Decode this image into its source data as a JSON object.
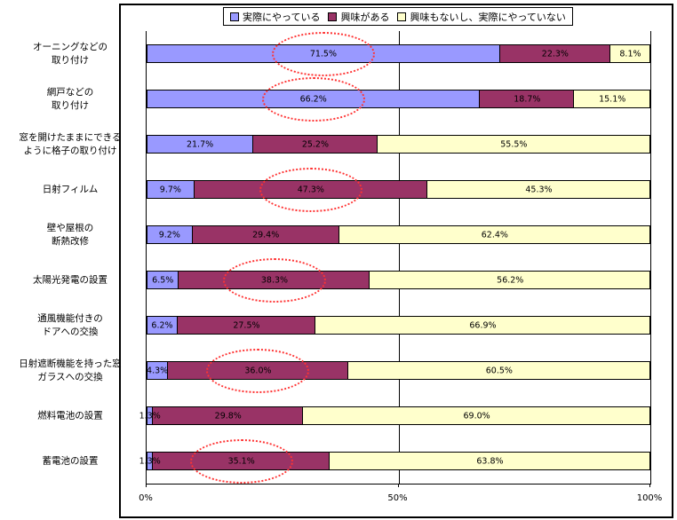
{
  "colors": {
    "series1": "#9999ff",
    "series2": "#993366",
    "series3": "#ffffcc",
    "highlight": "#ff3333",
    "border": "#000000"
  },
  "legend": {
    "items": [
      {
        "label": "実際にやっている",
        "color": "#9999ff"
      },
      {
        "label": "興味がある",
        "color": "#993366"
      },
      {
        "label": "興味もないし、実際にやっていない",
        "color": "#ffffcc"
      }
    ]
  },
  "axis": {
    "ticks": [
      {
        "label": "0%",
        "pos": 0
      },
      {
        "label": "50%",
        "pos": 50
      },
      {
        "label": "100%",
        "pos": 100
      }
    ]
  },
  "chart_data": {
    "type": "bar",
    "stacked": true,
    "orientation": "horizontal",
    "title": "",
    "xlabel": "",
    "ylabel": "",
    "xlim": [
      0,
      100
    ],
    "grid": "vertical line at 50%",
    "legend_position": "top-center",
    "value_suffix": "%",
    "categories": [
      "オーニングなどの\n取り付け",
      "網戸などの\n取り付け",
      "窓を開けたままにできる\nように格子の取り付け",
      "日射フィルム",
      "壁や屋根の\n断熱改修",
      "太陽光発電の設置",
      "通風機能付きの\nドアへの交換",
      "日射遮断機能を持った窓\nガラスへの交換",
      "燃料電池の設置",
      "蓄電池の設置"
    ],
    "series": [
      {
        "name": "実際にやっている",
        "color": "#9999ff",
        "values": [
          71.5,
          66.2,
          21.7,
          9.7,
          9.2,
          6.5,
          6.2,
          4.3,
          1.3,
          1.3
        ]
      },
      {
        "name": "興味がある",
        "color": "#993366",
        "values": [
          22.3,
          18.7,
          25.2,
          47.3,
          29.4,
          38.3,
          27.5,
          36.0,
          29.8,
          35.1
        ]
      },
      {
        "name": "興味もないし、実際にやっていない",
        "color": "#ffffcc",
        "values": [
          8.1,
          15.1,
          55.5,
          45.3,
          62.4,
          56.2,
          66.9,
          60.5,
          69.0,
          63.8
        ]
      }
    ],
    "annotations": {
      "circled_values": [
        {
          "row": 0,
          "series": 0,
          "value": 71.5
        },
        {
          "row": 1,
          "series": 0,
          "value": 66.2
        },
        {
          "row": 3,
          "series": 1,
          "value": 47.3
        },
        {
          "row": 5,
          "series": 1,
          "value": 38.3
        },
        {
          "row": 7,
          "series": 1,
          "value": 36.0
        },
        {
          "row": 9,
          "series": 1,
          "value": 35.1
        }
      ]
    }
  }
}
